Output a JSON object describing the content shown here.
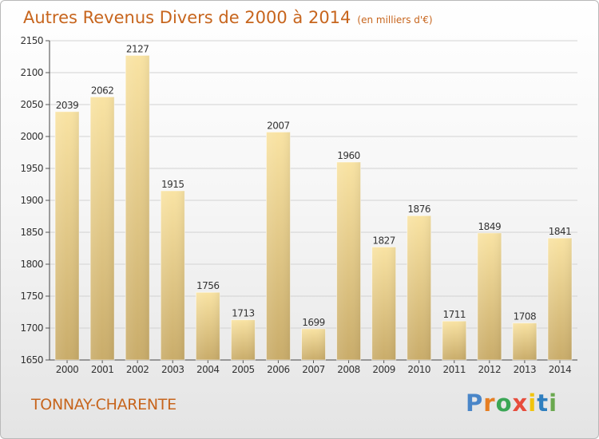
{
  "header": {
    "title": "Autres Revenus Divers de 2000 à 2014",
    "unit": "(en milliers d'€)"
  },
  "footer": {
    "place": "TONNAY-CHARENTE",
    "brand": "Proxiti"
  },
  "colors": {
    "title": "#c7651d",
    "bar_top": "#f9e3a3",
    "bar_bottom": "#c9ac6a",
    "logo_letters": [
      "#4a86c8",
      "#e67e22",
      "#3aa655",
      "#e74c3c",
      "#f1c40f",
      "#2f7fbf",
      "#6aa84f"
    ]
  },
  "chart_data": {
    "type": "bar",
    "categories": [
      "2000",
      "2001",
      "2002",
      "2003",
      "2004",
      "2005",
      "2006",
      "2007",
      "2008",
      "2009",
      "2010",
      "2011",
      "2012",
      "2013",
      "2014"
    ],
    "values": [
      2039,
      2062,
      2127,
      1915,
      1756,
      1713,
      2007,
      1699,
      1960,
      1827,
      1876,
      1711,
      1849,
      1708,
      1841
    ],
    "ylim": [
      1650,
      2150
    ],
    "yticks": [
      1650,
      1700,
      1750,
      1800,
      1850,
      1900,
      1950,
      2000,
      2050,
      2100,
      2150
    ],
    "grid": true,
    "data_labels": true
  }
}
